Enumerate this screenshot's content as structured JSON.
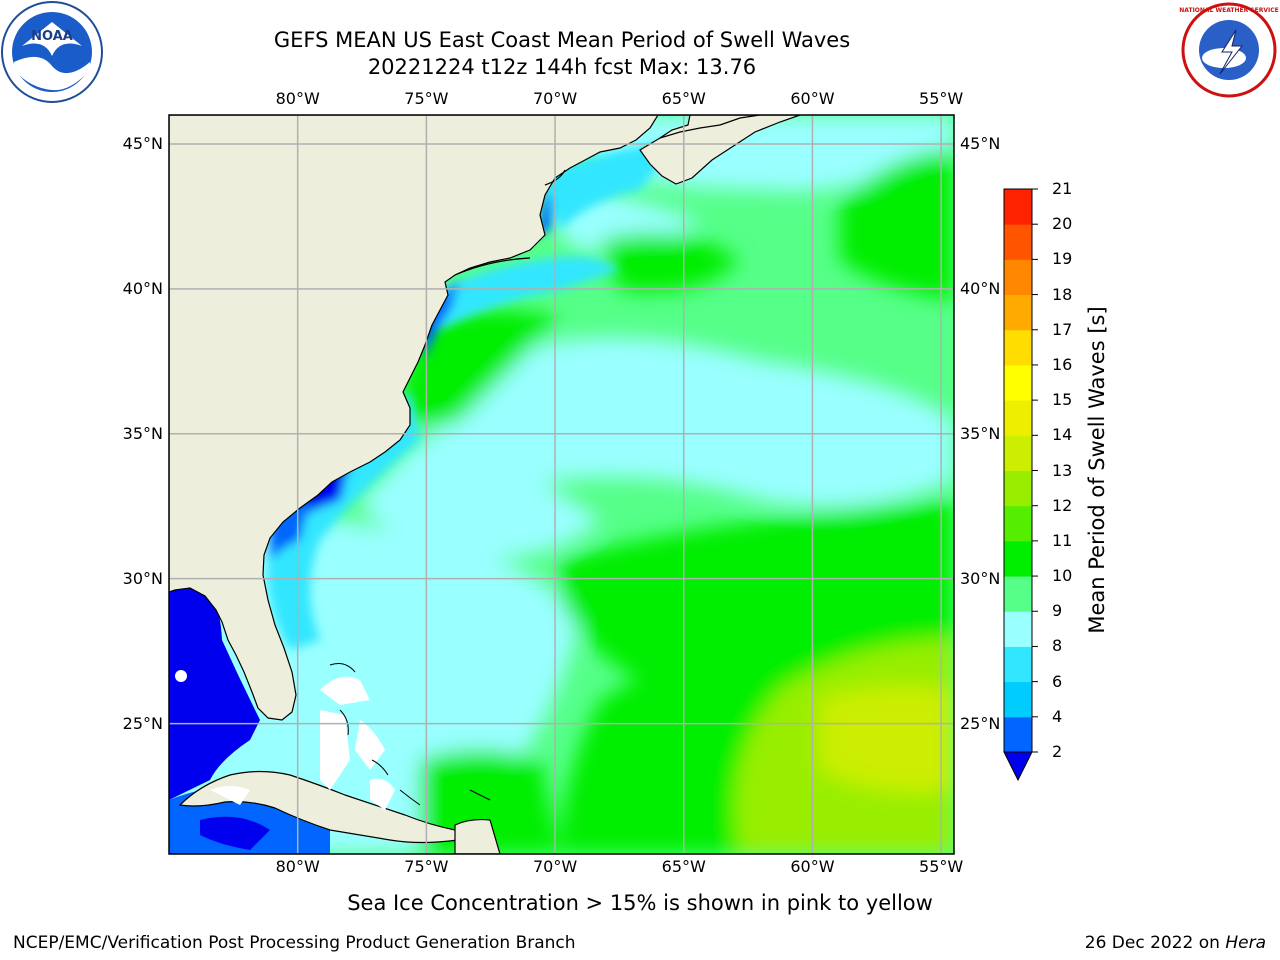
{
  "header": {
    "title_line1": "GEFS MEAN US East Coast Mean Period of Swell Waves",
    "title_line2": "20221224 t12z 144h fcst   Max: 13.76"
  },
  "map": {
    "lon_ticks": [
      "80°W",
      "75°W",
      "70°W",
      "65°W",
      "60°W",
      "55°W"
    ],
    "lat_ticks": [
      "45°N",
      "40°N",
      "35°N",
      "30°N",
      "25°N"
    ],
    "extent": {
      "lon_min": -85,
      "lon_max": -54.5,
      "lat_min": 20.5,
      "lat_max": 46
    },
    "land_color": "#eeeedc",
    "grid_color": "#b0b0b0"
  },
  "colorbar": {
    "label": "Mean Period of Swell Waves [s]",
    "levels": [
      "2",
      "4",
      "6",
      "8",
      "9",
      "10",
      "11",
      "12",
      "13",
      "14",
      "15",
      "16",
      "17",
      "18",
      "19",
      "20",
      "21"
    ],
    "colors": [
      "#0066ff",
      "#00ccff",
      "#33e6ff",
      "#99ffff",
      "#55ff88",
      "#00ee00",
      "#55ee00",
      "#99ee00",
      "#ccee00",
      "#eeee00",
      "#ffff00",
      "#ffdd00",
      "#ffaa00",
      "#ff8800",
      "#ff5500",
      "#ff2200",
      "#ff0000"
    ],
    "extend_color": "#0000ee"
  },
  "footer": {
    "note": "Sea Ice Concentration > 15% is shown in pink to yellow",
    "credit": "NCEP/EMC/Verification Post Processing Product Generation Branch",
    "date": "26 Dec 2022 on ",
    "host": "Hera"
  },
  "logos": {
    "left": {
      "icon": "noaa-logo",
      "text": "NOAA"
    },
    "right": {
      "icon": "nws-logo",
      "text": "NATIONAL WEATHER SERVICE"
    }
  }
}
